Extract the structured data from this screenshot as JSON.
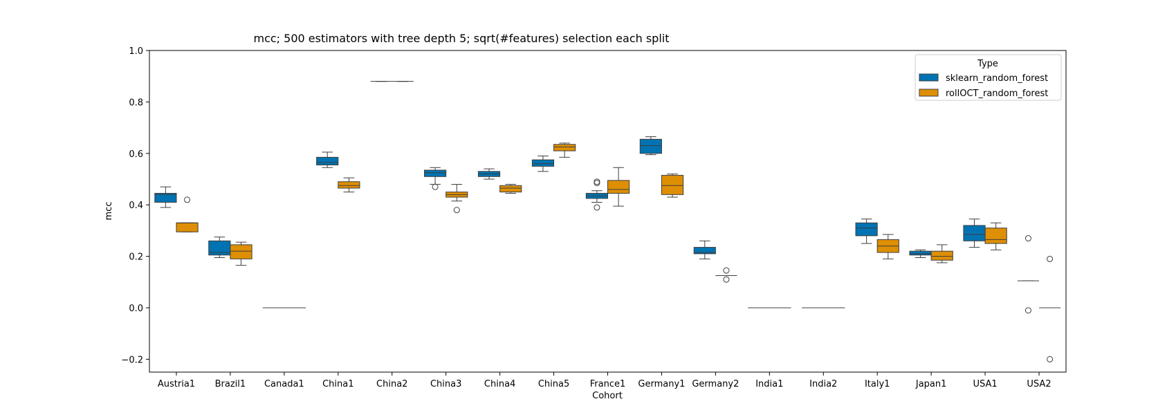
{
  "chart_data": {
    "type": "box",
    "title": "mcc; 500 estimators with tree depth 5; sqrt(#features) selection each split",
    "xlabel": "Cohort",
    "ylabel": "mcc",
    "ylim": [
      -0.25,
      1.0
    ],
    "yticks": [
      -0.2,
      0.0,
      0.2,
      0.4,
      0.6,
      0.8,
      1.0
    ],
    "ytick_labels": [
      "−0.2",
      "0.0",
      "0.2",
      "0.4",
      "0.6",
      "0.8",
      "1.0"
    ],
    "grid": false,
    "legend": {
      "title": "Type",
      "placement": "top-right"
    },
    "categories": [
      "Austria1",
      "Brazil1",
      "Canada1",
      "China1",
      "China2",
      "China3",
      "China4",
      "China5",
      "France1",
      "Germany1",
      "Germany2",
      "India1",
      "India2",
      "Italy1",
      "Japan1",
      "USA1",
      "USA2"
    ],
    "series": [
      {
        "name": "sklearn_random_forest",
        "color": "#0173b2",
        "boxes": [
          {
            "wlo": 0.39,
            "q1": 0.41,
            "med": 0.44,
            "q3": 0.445,
            "whi": 0.47,
            "outliers": []
          },
          {
            "wlo": 0.195,
            "q1": 0.205,
            "med": 0.215,
            "q3": 0.26,
            "whi": 0.275,
            "outliers": []
          },
          {
            "wlo": 0.0,
            "q1": 0.0,
            "med": 0.0,
            "q3": 0.0,
            "whi": 0.0,
            "outliers": []
          },
          {
            "wlo": 0.545,
            "q1": 0.555,
            "med": 0.565,
            "q3": 0.585,
            "whi": 0.605,
            "outliers": []
          },
          {
            "wlo": 0.88,
            "q1": 0.88,
            "med": 0.88,
            "q3": 0.88,
            "whi": 0.88,
            "outliers": []
          },
          {
            "wlo": 0.48,
            "q1": 0.51,
            "med": 0.525,
            "q3": 0.535,
            "whi": 0.545,
            "outliers": [
              0.47
            ]
          },
          {
            "wlo": 0.5,
            "q1": 0.51,
            "med": 0.52,
            "q3": 0.53,
            "whi": 0.54,
            "outliers": []
          },
          {
            "wlo": 0.53,
            "q1": 0.55,
            "med": 0.56,
            "q3": 0.575,
            "whi": 0.59,
            "outliers": []
          },
          {
            "wlo": 0.41,
            "q1": 0.425,
            "med": 0.435,
            "q3": 0.445,
            "whi": 0.455,
            "outliers": [
              0.485,
              0.49,
              0.39
            ]
          },
          {
            "wlo": 0.595,
            "q1": 0.6,
            "med": 0.63,
            "q3": 0.655,
            "whi": 0.665,
            "outliers": []
          },
          {
            "wlo": 0.19,
            "q1": 0.21,
            "med": 0.215,
            "q3": 0.235,
            "whi": 0.26,
            "outliers": []
          },
          {
            "wlo": 0.0,
            "q1": 0.0,
            "med": 0.0,
            "q3": 0.0,
            "whi": 0.0,
            "outliers": []
          },
          {
            "wlo": 0.0,
            "q1": 0.0,
            "med": 0.0,
            "q3": 0.0,
            "whi": 0.0,
            "outliers": []
          },
          {
            "wlo": 0.25,
            "q1": 0.28,
            "med": 0.31,
            "q3": 0.33,
            "whi": 0.345,
            "outliers": []
          },
          {
            "wlo": 0.195,
            "q1": 0.205,
            "med": 0.21,
            "q3": 0.22,
            "whi": 0.225,
            "outliers": []
          },
          {
            "wlo": 0.235,
            "q1": 0.26,
            "med": 0.285,
            "q3": 0.32,
            "whi": 0.345,
            "outliers": []
          },
          {
            "wlo": 0.105,
            "q1": 0.105,
            "med": 0.105,
            "q3": 0.105,
            "whi": 0.105,
            "outliers": [
              0.27,
              -0.01
            ]
          }
        ]
      },
      {
        "name": "rollOCT_random_forest",
        "color": "#de8f05",
        "boxes": [
          {
            "wlo": 0.295,
            "q1": 0.295,
            "med": 0.33,
            "q3": 0.33,
            "whi": 0.33,
            "outliers": [
              0.42
            ]
          },
          {
            "wlo": 0.165,
            "q1": 0.19,
            "med": 0.22,
            "q3": 0.245,
            "whi": 0.255,
            "outliers": []
          },
          {
            "wlo": 0.0,
            "q1": 0.0,
            "med": 0.0,
            "q3": 0.0,
            "whi": 0.0,
            "outliers": []
          },
          {
            "wlo": 0.45,
            "q1": 0.465,
            "med": 0.475,
            "q3": 0.49,
            "whi": 0.505,
            "outliers": []
          },
          {
            "wlo": 0.88,
            "q1": 0.88,
            "med": 0.88,
            "q3": 0.88,
            "whi": 0.88,
            "outliers": []
          },
          {
            "wlo": 0.415,
            "q1": 0.43,
            "med": 0.44,
            "q3": 0.45,
            "whi": 0.48,
            "outliers": [
              0.38
            ]
          },
          {
            "wlo": 0.445,
            "q1": 0.45,
            "med": 0.465,
            "q3": 0.475,
            "whi": 0.48,
            "outliers": []
          },
          {
            "wlo": 0.585,
            "q1": 0.61,
            "med": 0.625,
            "q3": 0.635,
            "whi": 0.64,
            "outliers": []
          },
          {
            "wlo": 0.395,
            "q1": 0.445,
            "med": 0.46,
            "q3": 0.495,
            "whi": 0.545,
            "outliers": []
          },
          {
            "wlo": 0.43,
            "q1": 0.44,
            "med": 0.475,
            "q3": 0.515,
            "whi": 0.52,
            "outliers": []
          },
          {
            "wlo": 0.125,
            "q1": 0.125,
            "med": 0.125,
            "q3": 0.125,
            "whi": 0.125,
            "outliers": [
              0.145,
              0.11
            ]
          },
          {
            "wlo": 0.0,
            "q1": 0.0,
            "med": 0.0,
            "q3": 0.0,
            "whi": 0.0,
            "outliers": []
          },
          {
            "wlo": 0.0,
            "q1": 0.0,
            "med": 0.0,
            "q3": 0.0,
            "whi": 0.0,
            "outliers": []
          },
          {
            "wlo": 0.19,
            "q1": 0.215,
            "med": 0.24,
            "q3": 0.265,
            "whi": 0.285,
            "outliers": []
          },
          {
            "wlo": 0.175,
            "q1": 0.185,
            "med": 0.2,
            "q3": 0.22,
            "whi": 0.245,
            "outliers": []
          },
          {
            "wlo": 0.225,
            "q1": 0.25,
            "med": 0.265,
            "q3": 0.31,
            "whi": 0.33,
            "outliers": []
          },
          {
            "wlo": 0.0,
            "q1": 0.0,
            "med": 0.0,
            "q3": 0.0,
            "whi": 0.0,
            "outliers": [
              0.19,
              -0.2
            ]
          }
        ]
      }
    ]
  }
}
